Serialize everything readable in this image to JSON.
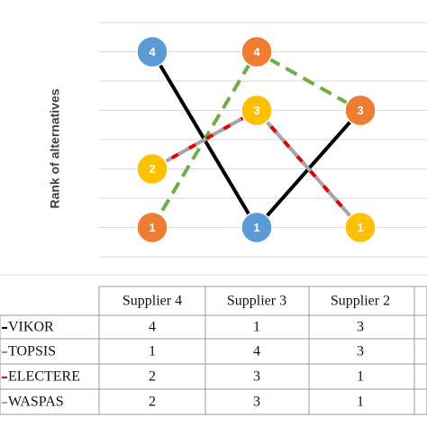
{
  "chart_data": {
    "type": "line",
    "y_label": "Rank of alternatives",
    "categories": [
      "Supplier 4",
      "Supplier 3",
      "Supplier 2"
    ],
    "ylim": [
      0.5,
      4.5
    ],
    "yticks": [
      0.5,
      1,
      1.5,
      2,
      2.5,
      3,
      3.5,
      4,
      4.5
    ],
    "grid": true,
    "series": [
      {
        "name": "VIKOR",
        "color": "#000000",
        "marker_color": "#5b9bd5",
        "dash": "solid",
        "values": [
          4,
          1,
          3
        ]
      },
      {
        "name": "TOPSIS",
        "color": "#70ad47",
        "marker_color": "#ed7d31",
        "dash": "dashed",
        "values": [
          1,
          4,
          3
        ]
      },
      {
        "name": "ELECTERE",
        "color": "#e00000",
        "marker_color": "#ffc000",
        "dash": "dashed",
        "values": [
          2,
          3,
          1
        ]
      },
      {
        "name": "WASPAS",
        "color": "#a5a5a5",
        "marker_color": "#ffc000",
        "dash": "dashed",
        "values": [
          2,
          3,
          1
        ]
      }
    ]
  }
}
